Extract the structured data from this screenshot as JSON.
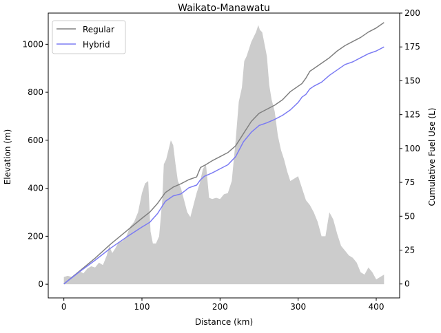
{
  "chart_data": {
    "type": "line",
    "title": "Waikato-Manawatu",
    "xlabel": "Distance (km)",
    "ylabel": "Elevation (m)",
    "y2label": "Cumulative Fuel Use (L)",
    "xlim": [
      -20,
      430
    ],
    "ylim": [
      -57,
      1130
    ],
    "y2lim": [
      -10.3,
      200
    ],
    "xticks": [
      0,
      100,
      200,
      300,
      400
    ],
    "yticks": [
      0,
      200,
      400,
      600,
      800,
      1000
    ],
    "y2ticks": [
      0,
      25,
      50,
      75,
      100,
      125,
      150,
      175,
      200
    ],
    "legend_position": "top-left",
    "colors": {
      "regular": "#808080",
      "hybrid": "#7b7bf3",
      "elevation": "#cccccc"
    },
    "elevation": {
      "x": [
        0,
        5,
        10,
        15,
        20,
        25,
        30,
        35,
        40,
        45,
        50,
        55,
        58,
        62,
        66,
        70,
        75,
        80,
        85,
        90,
        95,
        100,
        104,
        108,
        111,
        114,
        118,
        122,
        126,
        128,
        131,
        134,
        137,
        140,
        143,
        146,
        150,
        154,
        158,
        162,
        166,
        170,
        174,
        178,
        182,
        186,
        190,
        195,
        200,
        205,
        210,
        215,
        220,
        224,
        228,
        231,
        234,
        237,
        240,
        243,
        246,
        249,
        251,
        254,
        257,
        260,
        263,
        266,
        270,
        274,
        278,
        282,
        286,
        290,
        295,
        300,
        305,
        310,
        315,
        320,
        325,
        330,
        335,
        340,
        345,
        350,
        355,
        360,
        365,
        370,
        375,
        380,
        385,
        390,
        395,
        400,
        405,
        410
      ],
      "y": [
        30,
        35,
        30,
        40,
        55,
        45,
        65,
        75,
        70,
        90,
        80,
        120,
        160,
        130,
        150,
        175,
        180,
        200,
        240,
        260,
        300,
        380,
        420,
        430,
        220,
        170,
        170,
        200,
        350,
        500,
        520,
        560,
        600,
        580,
        500,
        430,
        400,
        350,
        300,
        280,
        330,
        380,
        420,
        480,
        500,
        360,
        355,
        360,
        355,
        375,
        380,
        430,
        600,
        760,
        820,
        930,
        950,
        980,
        1010,
        1030,
        1050,
        1080,
        1060,
        1050,
        1000,
        950,
        830,
        770,
        720,
        620,
        560,
        520,
        470,
        430,
        440,
        450,
        400,
        350,
        330,
        300,
        260,
        200,
        200,
        300,
        270,
        210,
        160,
        140,
        120,
        110,
        90,
        50,
        40,
        70,
        50,
        20,
        30,
        40
      ]
    },
    "series": [
      {
        "name": "Regular",
        "x": [
          0,
          20,
          40,
          60,
          80,
          100,
          110,
          120,
          130,
          140,
          150,
          160,
          170,
          175,
          180,
          190,
          200,
          210,
          220,
          230,
          240,
          250,
          260,
          270,
          280,
          290,
          300,
          305,
          310,
          315,
          320,
          330,
          340,
          350,
          360,
          370,
          380,
          390,
          400,
          410
        ],
        "y": [
          0,
          9.5,
          19,
          29.5,
          39,
          48.5,
          53,
          59.5,
          67.5,
          71.5,
          74,
          77,
          79,
          86,
          87.5,
          91,
          94,
          97,
          102,
          111,
          120,
          126,
          129,
          132,
          136,
          142,
          146,
          148,
          152,
          157,
          159,
          163,
          167,
          172,
          176,
          179,
          182,
          186,
          189,
          193
        ]
      },
      {
        "name": "Hybrid",
        "x": [
          0,
          20,
          40,
          60,
          80,
          100,
          110,
          120,
          130,
          140,
          150,
          160,
          170,
          175,
          180,
          190,
          200,
          210,
          220,
          230,
          240,
          250,
          260,
          270,
          280,
          290,
          300,
          305,
          310,
          315,
          320,
          330,
          340,
          350,
          360,
          370,
          380,
          390,
          400,
          410
        ],
        "y": [
          0,
          9,
          17.5,
          26.5,
          34.5,
          42,
          45.5,
          52,
          61,
          65,
          66.5,
          71,
          73,
          77,
          79.5,
          82,
          85,
          88,
          94,
          105,
          112,
          117,
          119,
          121.5,
          124.5,
          128.5,
          134,
          138,
          140,
          144,
          146,
          149,
          154,
          158,
          162,
          164,
          167,
          170,
          172,
          175
        ]
      }
    ]
  }
}
